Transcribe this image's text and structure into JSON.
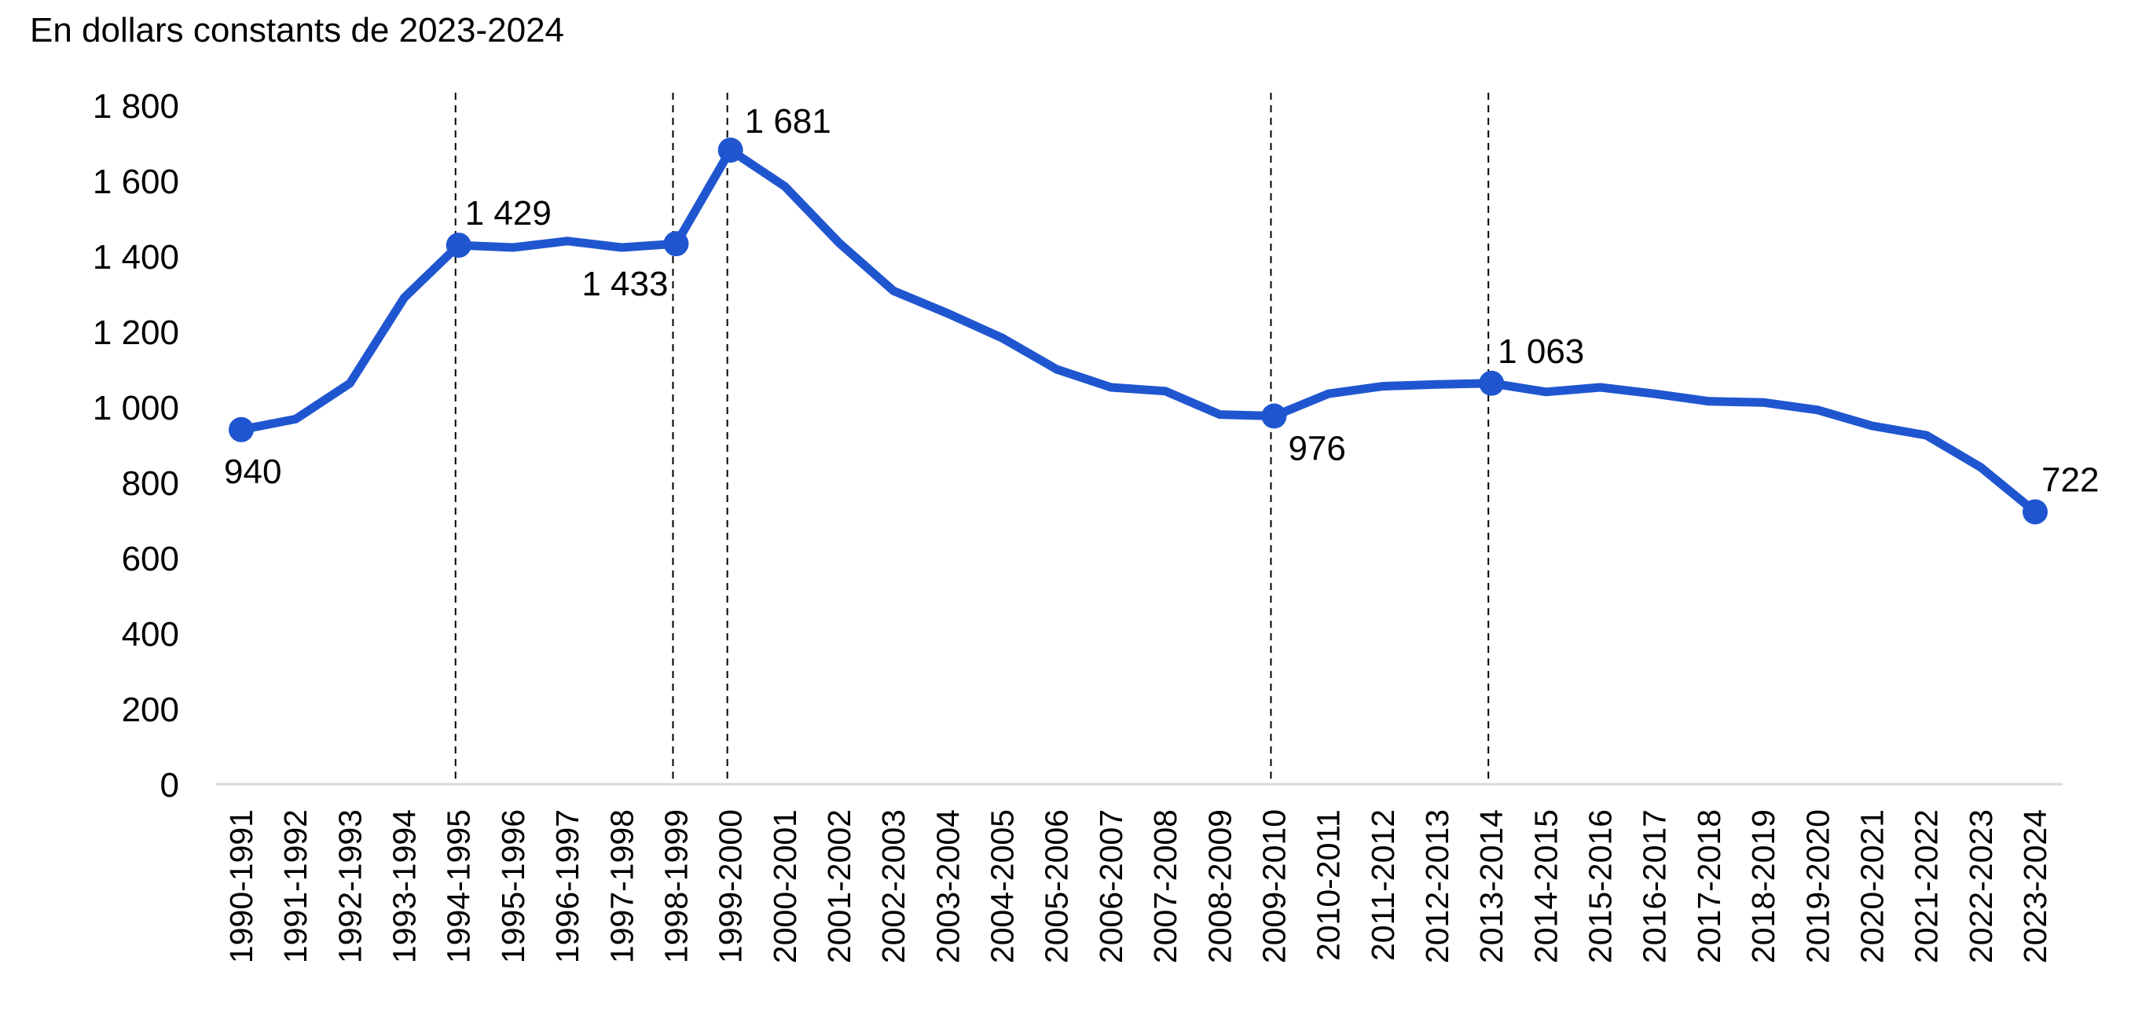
{
  "chart_data": {
    "type": "line",
    "title": "En dollars constants de 2023-2024",
    "xlabel": "",
    "ylabel": "",
    "ylim": [
      0,
      1800
    ],
    "yticks": [
      0,
      200,
      400,
      600,
      800,
      1000,
      1200,
      1400,
      1600,
      1800
    ],
    "ytick_labels": [
      "0",
      "200",
      "400",
      "600",
      "800",
      "1 000",
      "1 200",
      "1 400",
      "1 600",
      "1 800"
    ],
    "grid": false,
    "legend": "none",
    "line_color": "#1f56d0",
    "categories": [
      "1990-1991",
      "1991-1992",
      "1992-1993",
      "1993-1994",
      "1994-1995",
      "1995-1996",
      "1996-1997",
      "1997-1998",
      "1998-1999",
      "1999-2000",
      "2000-2001",
      "2001-2002",
      "2002-2003",
      "2003-2004",
      "2004-2005",
      "2005-2006",
      "2006-2007",
      "2007-2008",
      "2008-2009",
      "2009-2010",
      "2010-2011",
      "2011-2012",
      "2012-2013",
      "2013-2014",
      "2014-2015",
      "2015-2016",
      "2016-2017",
      "2017-2018",
      "2018-2019",
      "2019-2020",
      "2020-2021",
      "2021-2022",
      "2022-2023",
      "2023-2024"
    ],
    "values": [
      940,
      968,
      1063,
      1290,
      1429,
      1423,
      1440,
      1423,
      1433,
      1681,
      1585,
      1435,
      1308,
      1248,
      1183,
      1100,
      1052,
      1042,
      980,
      976,
      1035,
      1055,
      1060,
      1063,
      1040,
      1052,
      1035,
      1015,
      1012,
      992,
      950,
      925,
      840,
      722
    ],
    "markers": [
      0,
      4,
      8,
      9,
      19,
      23,
      33
    ],
    "data_labels": [
      {
        "index": 0,
        "text": "940",
        "pos": "below"
      },
      {
        "index": 4,
        "text": "1 429",
        "pos": "above-right"
      },
      {
        "index": 8,
        "text": "1 433",
        "pos": "below-left"
      },
      {
        "index": 9,
        "text": "1 681",
        "pos": "right"
      },
      {
        "index": 19,
        "text": "976",
        "pos": "below-right"
      },
      {
        "index": 23,
        "text": "1 063",
        "pos": "above-right"
      },
      {
        "index": 33,
        "text": "722",
        "pos": "above-right"
      }
    ],
    "vertical_dashed_lines": [
      4,
      8,
      9,
      19,
      23
    ]
  }
}
